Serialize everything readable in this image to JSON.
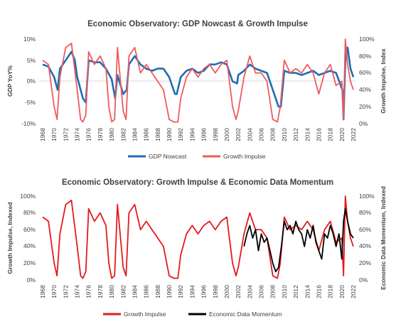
{
  "chart_data": [
    {
      "type": "line",
      "title": "Economic Observatory: GDP Nowcast & Growth Impulse",
      "ylabel": "GDP YoY%",
      "y2label": "Growth Impulse, Index",
      "xlim": [
        1968,
        2022
      ],
      "ylim": [
        -10,
        10
      ],
      "y2lim": [
        0,
        100
      ],
      "yticks": [
        "10%",
        "5%",
        "0%",
        "-5%",
        "-10%"
      ],
      "y2ticks": [
        "100%",
        "80%",
        "60%",
        "40%",
        "20%",
        "0%"
      ],
      "xticks": [
        "1968",
        "1970",
        "1972",
        "1974",
        "1976",
        "1978",
        "1980",
        "1982",
        "1984",
        "1986",
        "1988",
        "1990",
        "1992",
        "1994",
        "1996",
        "1998",
        "2000",
        "2002",
        "2004",
        "2006",
        "2008",
        "2010",
        "2012",
        "2014",
        "2016",
        "2018",
        "2020",
        "2022"
      ],
      "legend_position": "bottom",
      "series": [
        {
          "name": "GDP Nowcast",
          "color": "#1f6db5",
          "axis": "left",
          "x": [
            1968,
            1969,
            1970,
            1970.6,
            1971,
            1972,
            1973,
            1973.6,
            1974,
            1975,
            1975.5,
            1976,
            1977,
            1978,
            1979,
            1980,
            1980.6,
            1981,
            1982,
            1982.6,
            1983,
            1984,
            1985,
            1986,
            1987,
            1988,
            1989,
            1990,
            1991,
            1991.3,
            1992,
            1993,
            1994,
            1995,
            1996,
            1997,
            1998,
            1999,
            2000,
            2001,
            2001.8,
            2002,
            2003,
            2004,
            2005,
            2006,
            2007,
            2008,
            2009,
            2009.4,
            2010,
            2011,
            2012,
            2013,
            2014,
            2015,
            2016,
            2017,
            2018,
            2019,
            2020.1,
            2020.3,
            2020.6,
            2021,
            2021.5,
            2022
          ],
          "values": [
            4,
            3.5,
            1,
            -2,
            3,
            5,
            7,
            5,
            1,
            -4,
            -5,
            5,
            4.5,
            4.5,
            3,
            0.5,
            -4,
            1.5,
            -3,
            -2,
            4,
            6,
            4,
            3,
            2.5,
            3,
            3,
            1,
            -3,
            -3,
            1,
            2.5,
            3,
            2,
            2.5,
            4,
            4,
            4.5,
            4,
            0,
            -0.5,
            1.5,
            2.5,
            4,
            3,
            2.5,
            2,
            -2,
            -6,
            -6,
            2.5,
            2,
            2,
            1.5,
            2,
            2.5,
            1.5,
            2,
            2.5,
            2,
            -2,
            -9,
            5,
            8,
            3,
            1
          ]
        },
        {
          "name": "Growth Impulse",
          "color": "#f05a5a",
          "axis": "right",
          "x": [
            1968,
            1969,
            1970,
            1970.5,
            1971,
            1972,
            1973,
            1974,
            1974.6,
            1975,
            1975.5,
            1976,
            1977,
            1978,
            1979,
            1979.5,
            1980,
            1980.5,
            1981,
            1982,
            1982.5,
            1983,
            1984,
            1985,
            1986,
            1987,
            1988,
            1989,
            1990,
            1990.8,
            1991.5,
            1992,
            1993,
            1994,
            1995,
            1996,
            1997,
            1998,
            1999,
            2000,
            2001,
            2001.6,
            2002,
            2003,
            2004,
            2005,
            2006,
            2007,
            2008,
            2008.8,
            2009.3,
            2010,
            2011,
            2012,
            2013,
            2014,
            2015,
            2016,
            2017,
            2018,
            2019,
            2020,
            2020.3,
            2020.6,
            2021,
            2021.5,
            2022
          ],
          "values": [
            75,
            70,
            20,
            5,
            55,
            90,
            95,
            40,
            5,
            2,
            10,
            85,
            70,
            80,
            65,
            20,
            2,
            5,
            90,
            15,
            5,
            80,
            90,
            60,
            70,
            60,
            50,
            40,
            5,
            2,
            2,
            30,
            55,
            65,
            55,
            65,
            70,
            60,
            70,
            75,
            20,
            5,
            15,
            55,
            80,
            60,
            60,
            50,
            5,
            2,
            20,
            75,
            60,
            65,
            60,
            70,
            60,
            35,
            60,
            70,
            45,
            50,
            5,
            100,
            70,
            50,
            40
          ]
        }
      ]
    },
    {
      "type": "line",
      "title": "Economic Observatory: Growth Impulse & Economic Data Momentum",
      "ylabel": "Growth Impulse, Indexed",
      "y2label": "Economic Data Momentum, Indexed",
      "xlim": [
        1968,
        2022
      ],
      "ylim": [
        0,
        100
      ],
      "y2lim": [
        0,
        100
      ],
      "yticks": [
        "100%",
        "80%",
        "60%",
        "40%",
        "20%",
        "0%"
      ],
      "y2ticks": [
        "100%",
        "80%",
        "60%",
        "40%",
        "20%",
        "0%"
      ],
      "xticks": [
        "1968",
        "1970",
        "1972",
        "1974",
        "1976",
        "1978",
        "1980",
        "1982",
        "1984",
        "1986",
        "1988",
        "1990",
        "1992",
        "1994",
        "1996",
        "1998",
        "2000",
        "2002",
        "2004",
        "2006",
        "2008",
        "2010",
        "2012",
        "2014",
        "2016",
        "2018",
        "2020",
        "2022"
      ],
      "legend_position": "bottom",
      "series": [
        {
          "name": "Growth Impulse",
          "color": "#e31a1c",
          "axis": "left",
          "x": [
            1968,
            1969,
            1970,
            1970.5,
            1971,
            1972,
            1973,
            1974,
            1974.6,
            1975,
            1975.5,
            1976,
            1977,
            1978,
            1979,
            1979.5,
            1980,
            1980.5,
            1981,
            1982,
            1982.5,
            1983,
            1984,
            1985,
            1986,
            1987,
            1988,
            1989,
            1990,
            1990.8,
            1991.5,
            1992,
            1993,
            1994,
            1995,
            1996,
            1997,
            1998,
            1999,
            2000,
            2001,
            2001.6,
            2002,
            2003,
            2004,
            2005,
            2006,
            2007,
            2008,
            2008.8,
            2009.3,
            2010,
            2011,
            2012,
            2013,
            2014,
            2015,
            2016,
            2017,
            2018,
            2019,
            2020,
            2020.3,
            2020.6,
            2021,
            2021.5,
            2022
          ],
          "values": [
            75,
            70,
            20,
            5,
            55,
            90,
            95,
            40,
            5,
            2,
            10,
            85,
            70,
            80,
            65,
            20,
            2,
            5,
            90,
            15,
            5,
            80,
            90,
            60,
            70,
            60,
            50,
            40,
            5,
            2,
            2,
            30,
            55,
            65,
            55,
            65,
            70,
            60,
            70,
            75,
            20,
            5,
            15,
            55,
            80,
            60,
            60,
            50,
            5,
            2,
            20,
            75,
            60,
            65,
            60,
            70,
            60,
            35,
            60,
            70,
            45,
            50,
            5,
            100,
            70,
            50,
            40
          ]
        },
        {
          "name": "Economic Data Momentum",
          "color": "#000000",
          "axis": "right",
          "x": [
            2003,
            2003.5,
            2004,
            2004.5,
            2005,
            2005.5,
            2006,
            2006.5,
            2007,
            2007.5,
            2008,
            2008.5,
            2009,
            2009.5,
            2010,
            2010.5,
            2011,
            2011.5,
            2012,
            2012.5,
            2013,
            2013.5,
            2014,
            2014.5,
            2015,
            2015.5,
            2016,
            2016.5,
            2017,
            2017.5,
            2018,
            2018.5,
            2019,
            2019.5,
            2020,
            2020.3,
            2020.6,
            2021,
            2021.5,
            2022
          ],
          "values": [
            40,
            55,
            65,
            50,
            60,
            35,
            55,
            45,
            50,
            35,
            20,
            10,
            15,
            40,
            70,
            60,
            65,
            55,
            70,
            60,
            55,
            40,
            60,
            50,
            65,
            45,
            35,
            25,
            55,
            50,
            65,
            55,
            40,
            55,
            25,
            70,
            85,
            70,
            55,
            50
          ]
        }
      ]
    }
  ]
}
